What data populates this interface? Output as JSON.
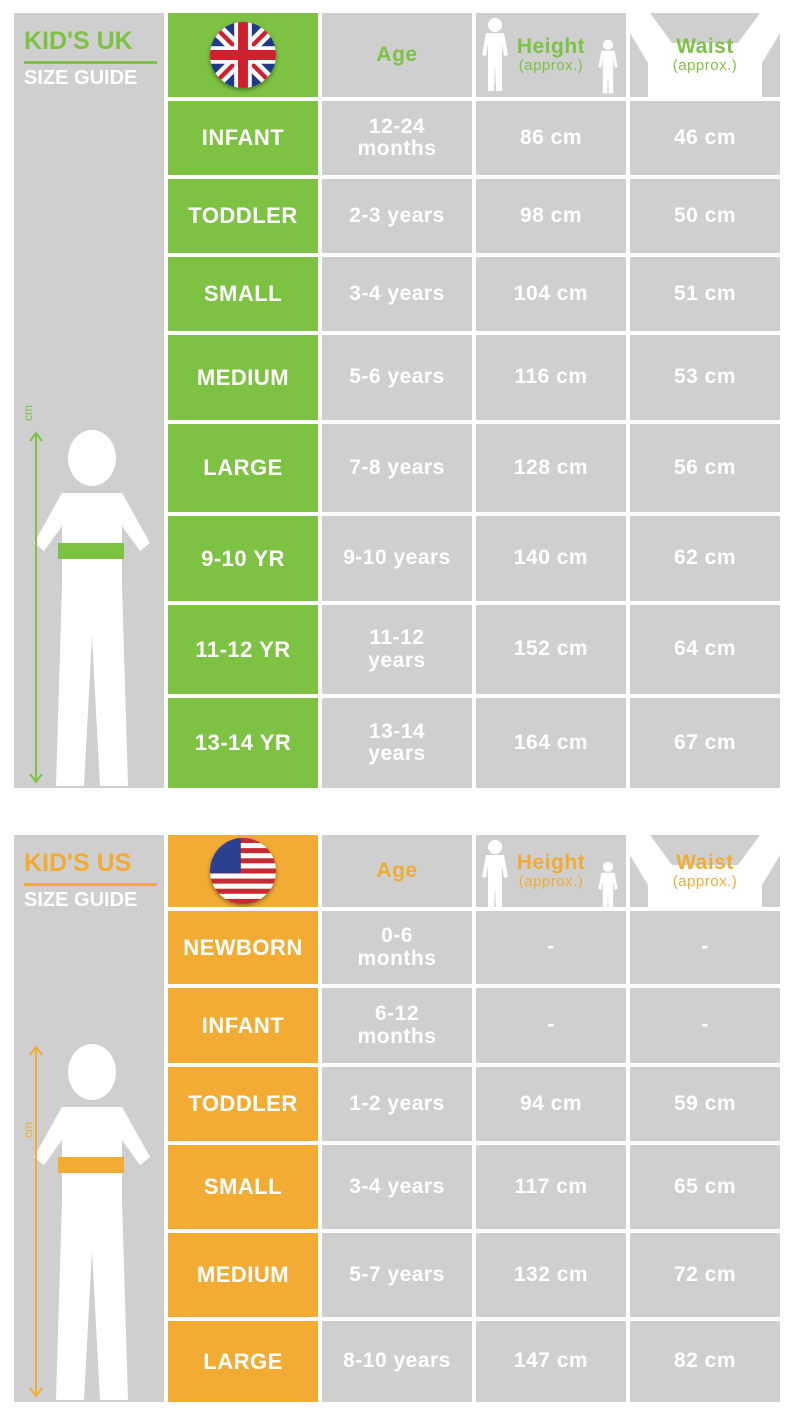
{
  "colors": {
    "uk_accent": "#7dc242",
    "us_accent": "#f2ac33",
    "cell_bg": "#cfcfcf",
    "text": "#ffffff"
  },
  "uk": {
    "title": "KID'S UK",
    "subtitle": "SIZE GUIDE",
    "flag_icon": "uk-flag-icon",
    "unit_label": "cm",
    "headers": {
      "age": "Age",
      "height": "Height",
      "height_note": "(approx.)",
      "waist": "Waist",
      "waist_note": "(approx.)"
    },
    "rows": [
      {
        "size": "INFANT",
        "age": "12-24 months",
        "height": "86 cm",
        "waist": "46 cm"
      },
      {
        "size": "TODDLER",
        "age": "2-3 years",
        "height": "98 cm",
        "waist": "50 cm"
      },
      {
        "size": "SMALL",
        "age": "3-4 years",
        "height": "104 cm",
        "waist": "51 cm"
      },
      {
        "size": "MEDIUM",
        "age": "5-6 years",
        "height": "116 cm",
        "waist": "53 cm"
      },
      {
        "size": "LARGE",
        "age": "7-8 years",
        "height": "128 cm",
        "waist": "56 cm"
      },
      {
        "size": "9-10 YR",
        "age": "9-10 years",
        "height": "140 cm",
        "waist": "62 cm"
      },
      {
        "size": "11-12 YR",
        "age": "11-12 years",
        "height": "152 cm",
        "waist": "64 cm"
      },
      {
        "size": "13-14 YR",
        "age": "13-14 years",
        "height": "164 cm",
        "waist": "67 cm"
      }
    ]
  },
  "us": {
    "title": "KID'S US",
    "subtitle": "SIZE GUIDE",
    "flag_icon": "us-flag-icon",
    "unit_label": "cm",
    "headers": {
      "age": "Age",
      "height": "Height",
      "height_note": "(approx.)",
      "waist": "Waist",
      "waist_note": "(approx.)"
    },
    "rows": [
      {
        "size": "NEWBORN",
        "age": "0-6 months",
        "height": "-",
        "waist": "-"
      },
      {
        "size": "INFANT",
        "age": "6-12 months",
        "height": "-",
        "waist": "-"
      },
      {
        "size": "TODDLER",
        "age": "1-2 years",
        "height": "94 cm",
        "waist": "59 cm"
      },
      {
        "size": "SMALL",
        "age": "3-4 years",
        "height": "117 cm",
        "waist": "65 cm"
      },
      {
        "size": "MEDIUM",
        "age": "5-7 years",
        "height": "132 cm",
        "waist": "72 cm"
      },
      {
        "size": "LARGE",
        "age": "8-10 years",
        "height": "147 cm",
        "waist": "82 cm"
      }
    ]
  }
}
